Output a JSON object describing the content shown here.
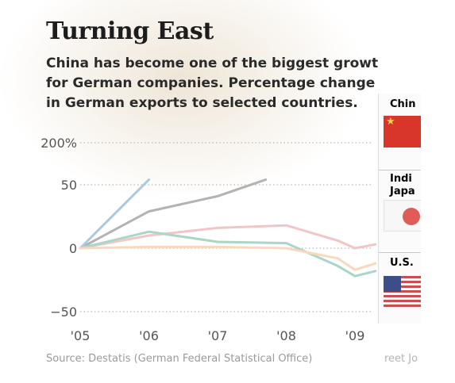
{
  "header": {
    "title": "Turning East",
    "subtitle_lines": [
      "China has become one of the biggest growt",
      "for German companies. Percentage change",
      "in German exports to selected countries."
    ]
  },
  "source": {
    "text": "Source: Destatis (German Federal Statistical Office)",
    "tail": "reet Jo"
  },
  "flags_panel": {
    "labels": [
      "Chin",
      "Indi",
      "Japa",
      "U.S."
    ],
    "colors": {
      "china": "#7a1f1c",
      "india": "#4a6fa5",
      "japan": "#e8a23c",
      "us": "#3a7a6e"
    }
  },
  "chart_data": {
    "type": "line",
    "title": "Turning East",
    "x": [
      "'05",
      "'06",
      "'07",
      "'08",
      "'09"
    ],
    "x_tick_labels": [
      "'05",
      "'06",
      "'07",
      "'08",
      "'09"
    ],
    "y_tick_labels": [
      "200%",
      "50",
      "0",
      "−50"
    ],
    "ylim": [
      -50,
      200
    ],
    "grid": true,
    "series": [
      {
        "color": "#b3b3b3",
        "x": [
          0,
          1,
          2,
          2.7
        ],
        "values": [
          0,
          29,
          41,
          54
        ]
      },
      {
        "color": "#a7cbe3",
        "x": [
          0,
          1
        ],
        "values": [
          0,
          54
        ]
      },
      {
        "color": "#f2c6c6",
        "x": [
          0,
          1,
          2,
          3,
          3.75,
          4,
          4.3
        ],
        "values": [
          0,
          10,
          16,
          18,
          6,
          0,
          3
        ]
      },
      {
        "color": "#a9d6c6",
        "x": [
          0,
          1,
          2,
          3,
          3.75,
          4,
          4.3
        ],
        "values": [
          0,
          13,
          5,
          4,
          -14,
          -22,
          -18
        ]
      },
      {
        "color": "#f7d9bd",
        "x": [
          0,
          1,
          2,
          3,
          3.75,
          4,
          4.3
        ],
        "values": [
          0,
          1,
          1,
          0,
          -8,
          -17,
          -12
        ]
      }
    ]
  }
}
